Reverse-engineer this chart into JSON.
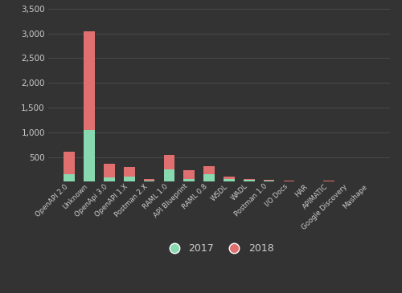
{
  "categories": [
    "OpenAPI 2.0",
    "Unknown",
    "OpenApi 3.0",
    "OpenAPI 1.X",
    "Postman 2.X",
    "RAML 1.0",
    "API Blueprint",
    "RAML 0.8",
    "WSDL",
    "WADL",
    "Postman 1.0",
    "I/O Docs",
    "HAR",
    "APIMATIC",
    "Google Discovery",
    "Mashape"
  ],
  "values_2017": [
    150,
    1050,
    80,
    100,
    20,
    250,
    60,
    150,
    50,
    30,
    25,
    0,
    0,
    0,
    0,
    0
  ],
  "values_2018": [
    460,
    2000,
    280,
    190,
    30,
    290,
    170,
    160,
    60,
    30,
    20,
    20,
    10,
    15,
    5,
    10
  ],
  "color_2017": "#88d8b0",
  "color_2018": "#e07070",
  "bg_color": "#333333",
  "grid_color": "#4a4a4a",
  "text_color": "#cccccc",
  "ylim": [
    0,
    3500
  ],
  "yticks": [
    0,
    500,
    1000,
    1500,
    2000,
    2500,
    3000,
    3500
  ],
  "legend_labels": [
    "2017",
    "2018"
  ],
  "bar_width": 0.55
}
